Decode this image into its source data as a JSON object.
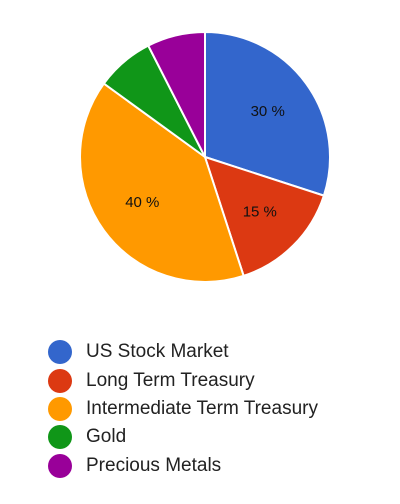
{
  "chart_data": {
    "type": "pie",
    "categories": [
      "US Stock Market",
      "Long Term Treasury",
      "Intermediate Term Treasury",
      "Gold",
      "Precious Metals"
    ],
    "values": [
      30,
      15,
      40,
      7.5,
      7.5
    ],
    "slice_labels": [
      "30 %",
      "15 %",
      "40 %",
      "",
      ""
    ],
    "colors": [
      "#3366cc",
      "#dc3912",
      "#ff9900",
      "#109618",
      "#990099"
    ],
    "start_angle": 0,
    "direction": "clockwise",
    "legend_position": "bottom"
  }
}
